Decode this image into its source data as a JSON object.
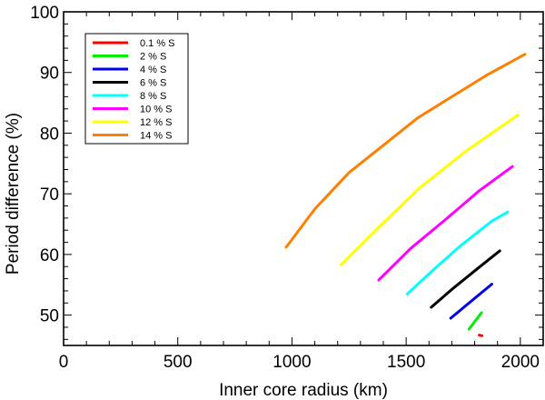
{
  "chart_data": {
    "type": "line",
    "title": "",
    "xlabel": "Inner core radius (km)",
    "ylabel": "Period difference (%)",
    "xlim": [
      0,
      2100
    ],
    "ylim": [
      45,
      100
    ],
    "xticks": [
      0,
      500,
      1000,
      1500,
      2000
    ],
    "yticks": [
      50,
      60,
      70,
      80,
      90,
      100
    ],
    "grid": false,
    "legend_position": "top-left",
    "series": [
      {
        "name": "0.1 % S",
        "color": "#ff0000",
        "x": [
          1820,
          1832
        ],
        "y": [
          46.7,
          46.6
        ]
      },
      {
        "name": "2 % S",
        "color": "#00ee00",
        "x": [
          1775,
          1830
        ],
        "y": [
          47.7,
          50.4
        ]
      },
      {
        "name": "4 % S",
        "color": "#0000ee",
        "x": [
          1695,
          1875
        ],
        "y": [
          49.5,
          55.1
        ]
      },
      {
        "name": "6 % S",
        "color": "#000000",
        "x": [
          1610,
          1705,
          1810,
          1910
        ],
        "y": [
          51.3,
          54.4,
          57.6,
          60.6
        ]
      },
      {
        "name": "8 % S",
        "color": "#00ffff",
        "x": [
          1505,
          1620,
          1740,
          1875,
          1945
        ],
        "y": [
          53.5,
          57.5,
          61.5,
          65.5,
          67.0
        ]
      },
      {
        "name": "10 % S",
        "color": "#ff00ff",
        "x": [
          1380,
          1520,
          1680,
          1820,
          1965
        ],
        "y": [
          55.8,
          61.0,
          66.0,
          70.5,
          74.5
        ]
      },
      {
        "name": "12 % S",
        "color": "#ffff00",
        "x": [
          1215,
          1380,
          1560,
          1760,
          1990
        ],
        "y": [
          58.3,
          64.5,
          71.0,
          77.0,
          83.0
        ]
      },
      {
        "name": "14 % S",
        "color": "#ff7f00",
        "x": [
          975,
          1100,
          1250,
          1400,
          1550,
          1700,
          1850,
          2020
        ],
        "y": [
          61.2,
          67.5,
          73.5,
          78.0,
          82.5,
          86.0,
          89.5,
          93.0
        ]
      }
    ]
  }
}
